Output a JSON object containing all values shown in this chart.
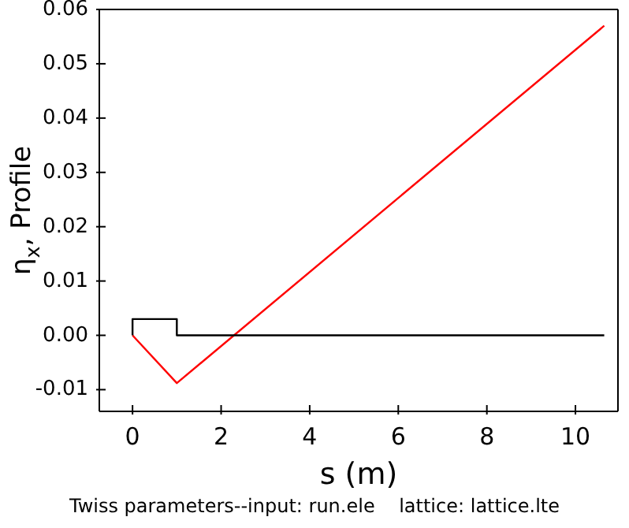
{
  "chart_data": {
    "type": "line",
    "xlabel": "s (m)",
    "ylabel": "η$_{x}$, Profile",
    "annotations": [
      "Twiss parameters--input: run.ele    lattice: lattice.lte"
    ],
    "series": [
      {
        "color": "#ff0000",
        "x": [
          0,
          1,
          10.65
        ],
        "values": [
          0,
          -0.0088,
          0.057
        ]
      },
      {
        "color": "#000000",
        "x": [
          0,
          0,
          1,
          1,
          10.65
        ],
        "values": [
          0,
          0.003,
          0.003,
          0,
          0
        ]
      }
    ],
    "xlim": [
      -0.75,
      10.96
    ],
    "xticks": [
      0,
      2,
      4,
      6,
      8,
      10
    ],
    "ylim": [
      -0.014,
      0.06
    ],
    "yticks": [
      -0.01,
      {
        "value": 0,
        "label": "0.00"
      },
      0.01,
      0.02,
      0.03,
      0.04,
      0.05,
      0.06
    ],
    "grid": false,
    "marker": "none",
    "line_style": "solid"
  }
}
